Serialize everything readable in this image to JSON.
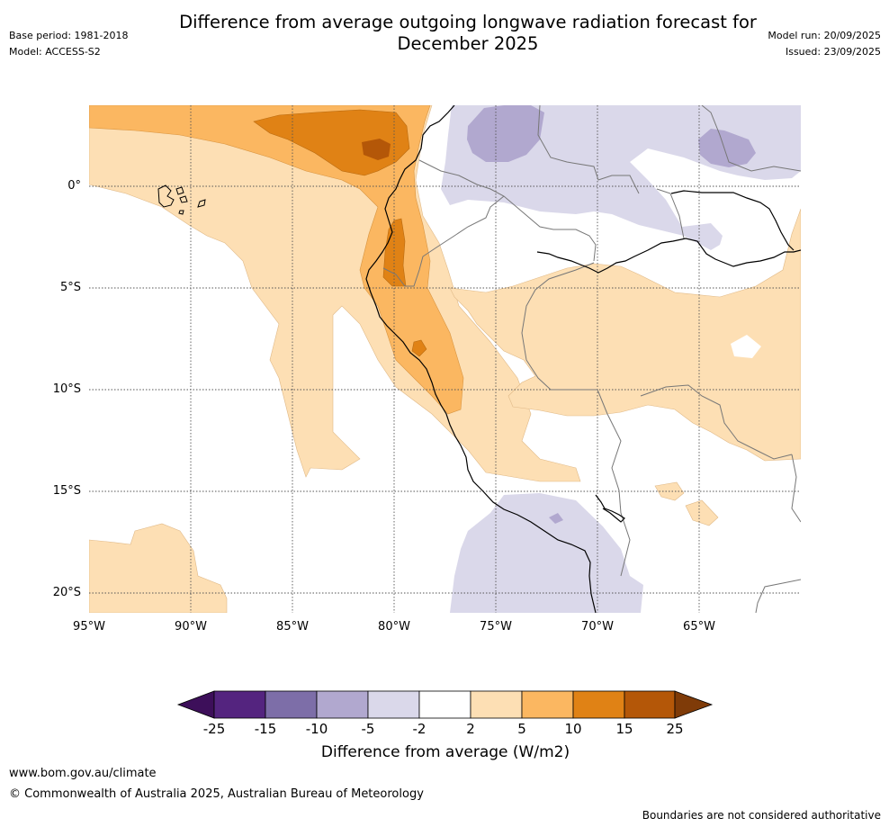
{
  "title_line1": "Difference from average outgoing longwave radiation forecast for",
  "title_line2": "December 2025",
  "base_period": "Base period: 1981-2018",
  "model": "Model: ACCESS-S2",
  "model_run": "Model run: 20/09/2025",
  "issued": "Issued: 23/09/2025",
  "map": {
    "lat_ticks": [
      "0°",
      "5°S",
      "10°S",
      "15°S",
      "20°S"
    ],
    "lon_ticks": [
      "95°W",
      "90°W",
      "85°W",
      "80°W",
      "75°W",
      "70°W",
      "65°W"
    ]
  },
  "colorbar": {
    "labels": [
      "-25",
      "-15",
      "-10",
      "-5",
      "-2",
      "2",
      "5",
      "10",
      "15",
      "25"
    ],
    "colors": [
      "#3d0f5a",
      "#54247f",
      "#7d6ea8",
      "#b1a8cf",
      "#dad8ea",
      "#ffffff",
      "#fddfb4",
      "#fbb761",
      "#e08215",
      "#b45708",
      "#7f3b08"
    ],
    "title": "Difference from average (W/m2)"
  },
  "footer": {
    "url": "www.bom.gov.au/climate",
    "copyright": "© Commonwealth of Australia 2025, Australian Bureau of Meteorology",
    "disclaimer": "Boundaries are not considered authoritative"
  }
}
